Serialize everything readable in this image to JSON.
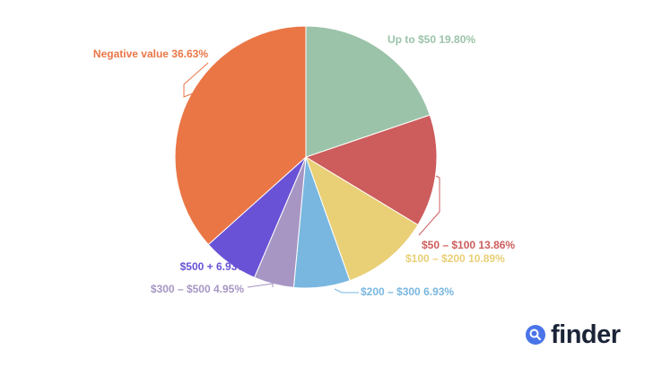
{
  "chart_data": {
    "type": "pie",
    "slices": [
      {
        "label": "Up to $50",
        "value": 19.8,
        "display": "Up to $50 19.80%",
        "color": "#9bc3a9"
      },
      {
        "label": "$50 – $100",
        "value": 13.86,
        "display": "$50 – $100 13.86%",
        "color": "#cd5c5c"
      },
      {
        "label": "$100 – $200",
        "value": 10.89,
        "display": "$100 – $200 10.89%",
        "color": "#e9cf76"
      },
      {
        "label": "$200 – $300",
        "value": 6.93,
        "display": "$200 – $300 6.93%",
        "color": "#79b7e0"
      },
      {
        "label": "$300 – $500",
        "value": 4.95,
        "display": "$300 – $500 4.95%",
        "color": "#a796c4"
      },
      {
        "label": "$500 +",
        "value": 6.93,
        "display": "$500 + 6.93%",
        "color": "#6a52d6"
      },
      {
        "label": "Negative value",
        "value": 36.63,
        "display": "Negative value 36.63%",
        "color": "#ea7646"
      }
    ]
  },
  "brand": {
    "logo_text": "finder",
    "icon": "search-icon",
    "color": "#4a74e8"
  }
}
